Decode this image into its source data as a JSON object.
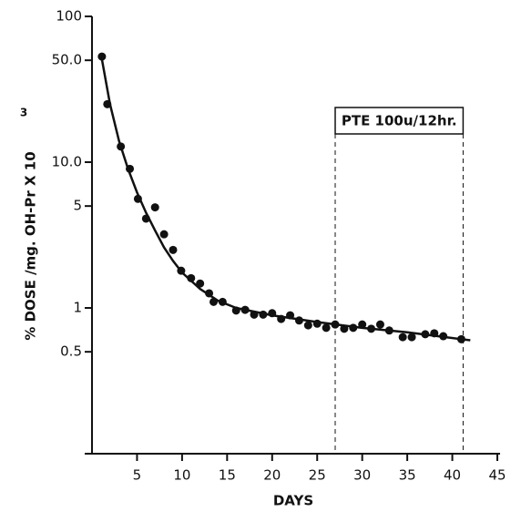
{
  "chart_data": {
    "type": "scatter",
    "x_label": "DAYS",
    "y_label": "% DOSE /mg. OH-Pr X 10",
    "y_label_superscript": "3",
    "log_y": true,
    "color": "#111111",
    "xlim": [
      0,
      45
    ],
    "xticks": [
      5,
      10,
      15,
      20,
      25,
      30,
      35,
      40,
      45
    ],
    "ylim": [
      0.1,
      100
    ],
    "yticks": [
      100,
      {
        "value": 50,
        "label": "50.0"
      },
      {
        "value": 10,
        "label": "10.0"
      },
      5.0,
      1.0,
      0.5
    ],
    "points": {
      "x": [
        1.1,
        1.7,
        3.2,
        4.2,
        5.1,
        6.0,
        7.0,
        8.0,
        9.0,
        9.9,
        11,
        12,
        13,
        13.5,
        14.5,
        16,
        17,
        18,
        19,
        20,
        21,
        22,
        23,
        24,
        25,
        26,
        27,
        28,
        29,
        30,
        31,
        32,
        33,
        34.5,
        35.5,
        37,
        38,
        39,
        41
      ],
      "values": [
        53,
        25,
        12.8,
        9.0,
        5.6,
        4.1,
        4.9,
        3.2,
        2.5,
        1.8,
        1.6,
        1.47,
        1.26,
        1.1,
        1.1,
        0.96,
        0.97,
        0.9,
        0.9,
        0.92,
        0.84,
        0.89,
        0.82,
        0.76,
        0.78,
        0.73,
        0.77,
        0.72,
        0.73,
        0.77,
        0.72,
        0.77,
        0.7,
        0.63,
        0.63,
        0.66,
        0.67,
        0.64,
        0.61
      ]
    },
    "fit_curve": {
      "x": [
        1,
        2,
        3,
        4,
        5,
        6,
        7,
        8,
        9,
        10,
        12,
        14,
        16,
        20,
        25,
        30,
        35,
        42
      ],
      "values": [
        55,
        25,
        14,
        9,
        6.2,
        4.5,
        3.4,
        2.6,
        2.1,
        1.75,
        1.35,
        1.12,
        1.0,
        0.89,
        0.8,
        0.73,
        0.68,
        0.6
      ]
    },
    "annotation": {
      "text": "PTE 100u/12hr.",
      "x_start": 27,
      "x_end": 41.2
    }
  }
}
